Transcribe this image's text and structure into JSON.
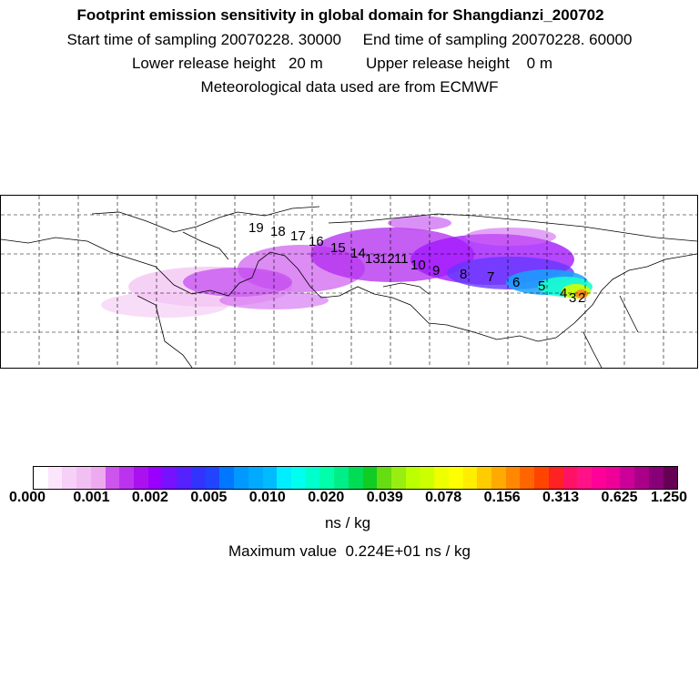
{
  "header": {
    "title": "Footprint emission sensitivity in global domain for Shangdianzi_200702",
    "sampling": "Start time of sampling 20070228. 30000     End time of sampling 20070228. 60000",
    "release": "Lower release height   20 m          Upper release height    0 m",
    "meteo": "Meteorological data used are from ECMWF"
  },
  "map": {
    "labels": [
      "19",
      "18",
      "17",
      "16",
      "15",
      "14",
      "13",
      "12",
      "11",
      "10",
      "9",
      "8",
      "7",
      "6",
      "5",
      "4",
      "3",
      "2"
    ]
  },
  "colorbar": {
    "ticks": [
      "0.000",
      "0.001",
      "0.002",
      "0.005",
      "0.010",
      "0.020",
      "0.039",
      "0.078",
      "0.156",
      "0.313",
      "0.625",
      "1.250"
    ],
    "colors": [
      "#ffffff",
      "#fbe6fb",
      "#f6d0f6",
      "#f2bff2",
      "#eeaaee",
      "#cc55ee",
      "#bb33ee",
      "#aa11ee",
      "#9900ff",
      "#7711ff",
      "#5522ff",
      "#3333ff",
      "#2244ff",
      "#0077ff",
      "#0099ff",
      "#00aaff",
      "#00bbff",
      "#00eeff",
      "#00ffee",
      "#00ffcc",
      "#00ffaa",
      "#00ee88",
      "#00dd55",
      "#11cc22",
      "#66dd11",
      "#99ee11",
      "#bbff00",
      "#ccff00",
      "#eeff00",
      "#ffff00",
      "#ffee00",
      "#ffcc00",
      "#ffaa00",
      "#ff8800",
      "#ff6600",
      "#ff4400",
      "#ff2222",
      "#ff1166",
      "#ff1188",
      "#ff0099",
      "#ee0099",
      "#cc0099",
      "#aa0088",
      "#880077",
      "#660055"
    ],
    "unit": "ns / kg",
    "max_label": "Maximum value  0.224E+01 ns / kg"
  }
}
